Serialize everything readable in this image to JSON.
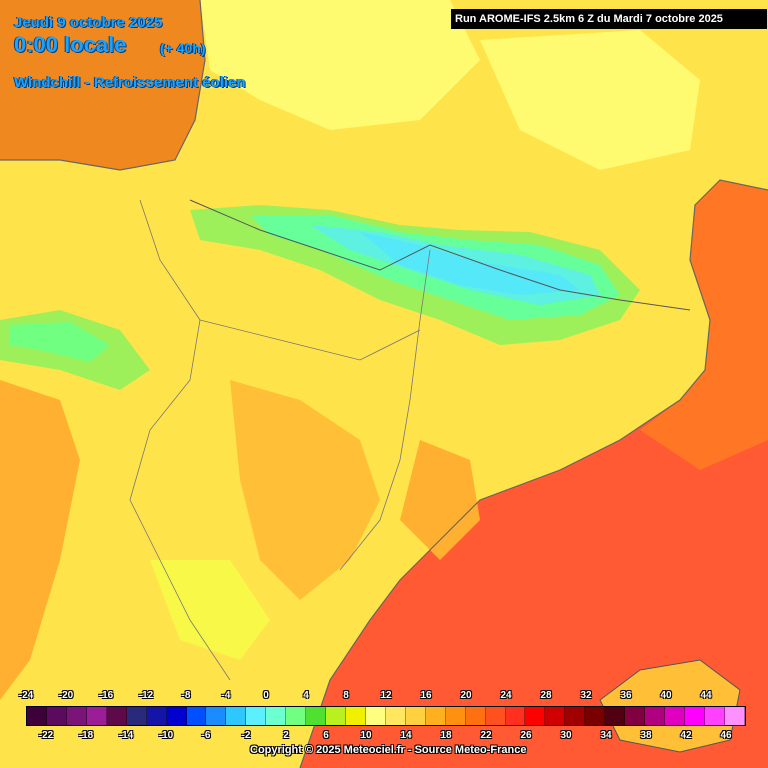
{
  "header": {
    "date": "Jeudi 9 octobre 2025",
    "time": "0:00 locale",
    "lead": "(+ 40h)",
    "product": "Windchill - Refroissement éolien"
  },
  "run_banner": "Run AROME-IFS 2.5km 6 Z du Mardi 7 octobre 2025",
  "copyright": "Copyright © 2025 Meteociel.fr - Source Meteo-France",
  "legend": {
    "top_labels": [
      "-24",
      "-20",
      "-16",
      "-12",
      "-8",
      "-4",
      "0",
      "4",
      "8",
      "12",
      "16",
      "20",
      "24",
      "28",
      "32",
      "36",
      "40",
      "44"
    ],
    "bottom_labels": [
      "-22",
      "-18",
      "-14",
      "-10",
      "-6",
      "-2",
      "2",
      "6",
      "10",
      "14",
      "18",
      "22",
      "26",
      "30",
      "34",
      "38",
      "42",
      "46"
    ],
    "colors": [
      "#3d0038",
      "#5c0a5e",
      "#7a1478",
      "#9b1e96",
      "#5e0a4a",
      "#2a2a7a",
      "#1414a8",
      "#0000d0",
      "#0050ff",
      "#1a8cff",
      "#2ec8ff",
      "#5cf0ff",
      "#6cffd0",
      "#70ff80",
      "#50e030",
      "#b8f020",
      "#f0f000",
      "#ffff80",
      "#ffe860",
      "#ffd040",
      "#ffb020",
      "#ff9010",
      "#ff7010",
      "#ff5020",
      "#ff3020",
      "#ff0000",
      "#d00000",
      "#a00000",
      "#7a0000",
      "#500010",
      "#800040",
      "#b00080",
      "#e000c0",
      "#ff00ff",
      "#ff40ff",
      "#ff90ff"
    ]
  }
}
